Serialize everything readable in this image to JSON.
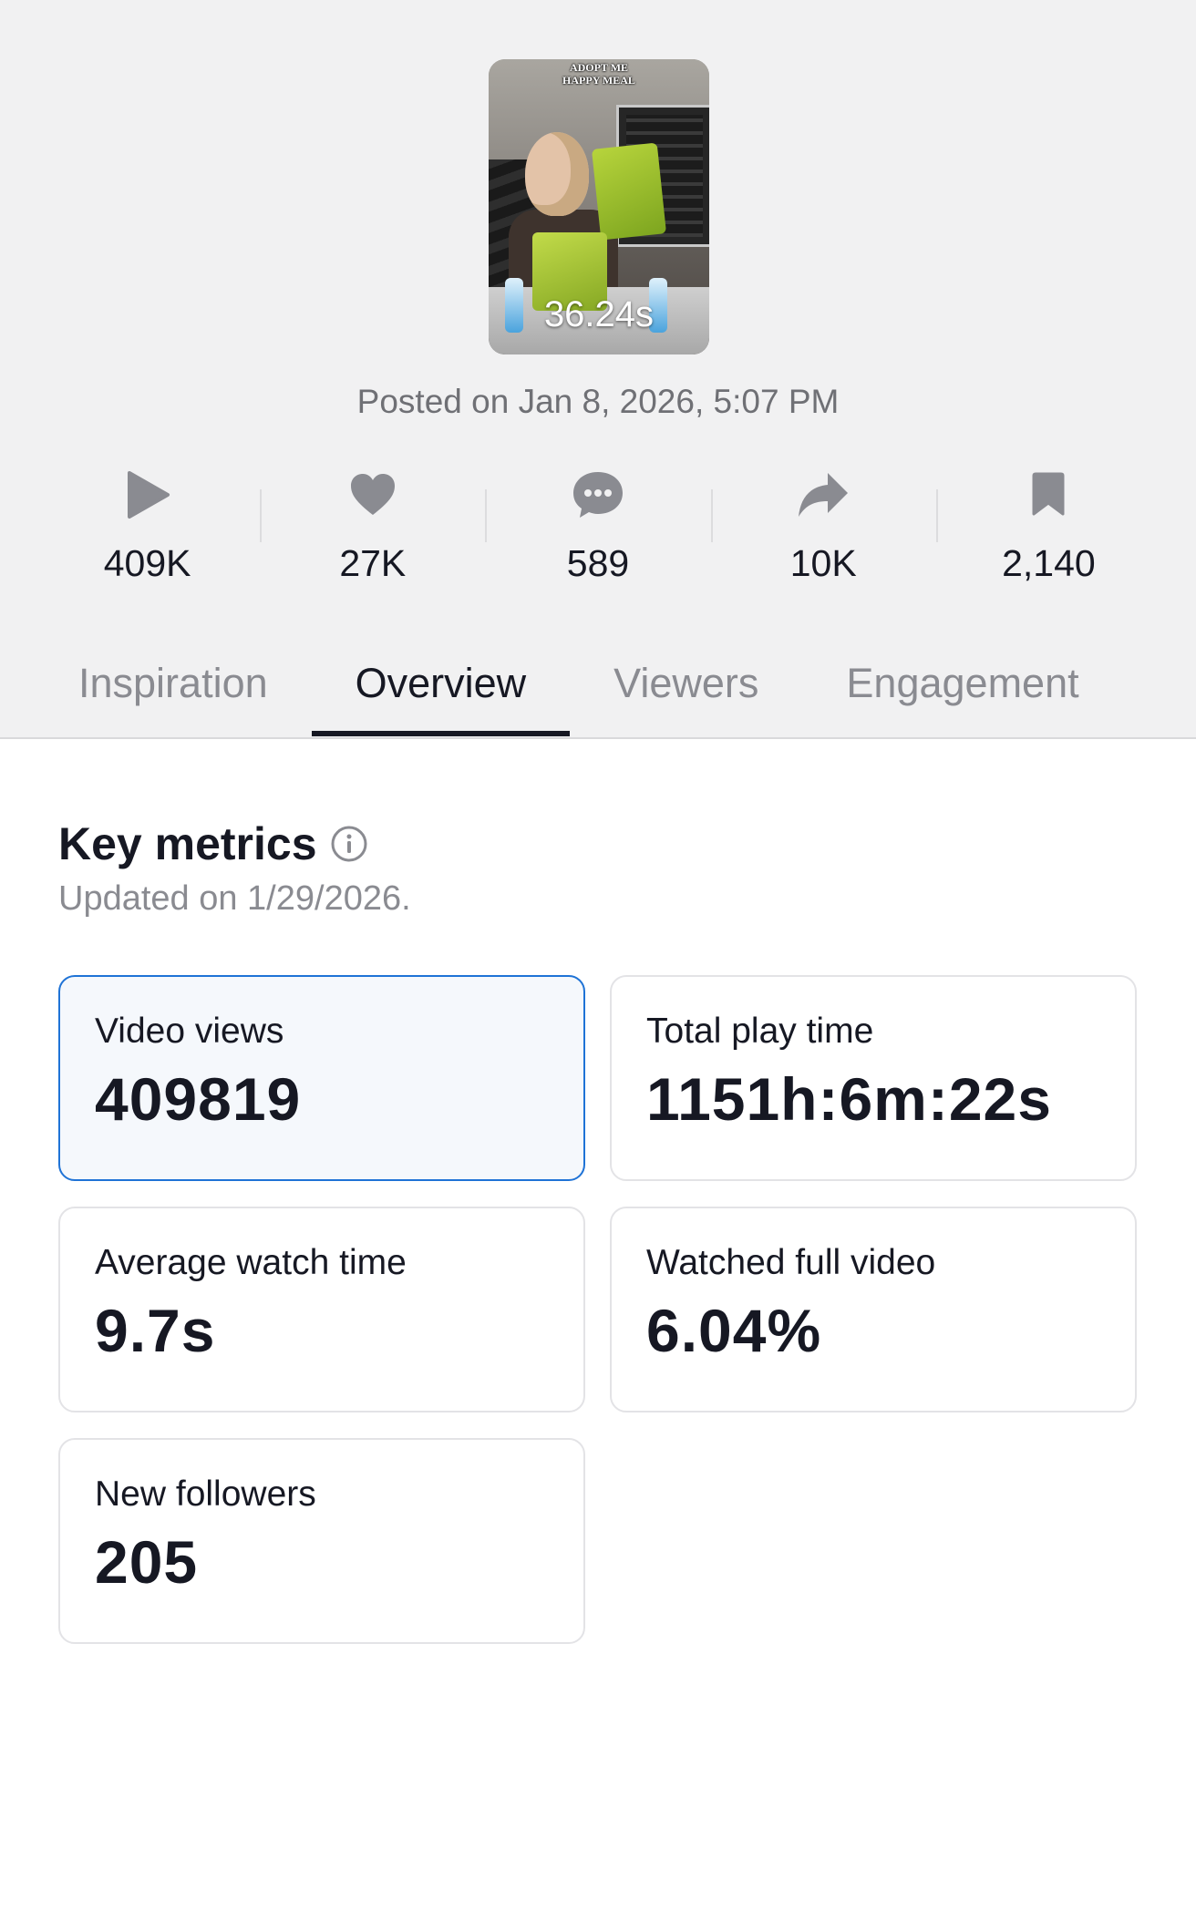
{
  "video": {
    "thumbnail_caption": "ADOPT ME\nHAPPY MEAL",
    "duration": "36.24s",
    "posted": "Posted on Jan 8, 2026, 5:07 PM"
  },
  "stats": [
    {
      "icon": "play-icon",
      "value": "409K"
    },
    {
      "icon": "heart-icon",
      "value": "27K"
    },
    {
      "icon": "comment-icon",
      "value": "589"
    },
    {
      "icon": "share-icon",
      "value": "10K"
    },
    {
      "icon": "bookmark-icon",
      "value": "2,140"
    }
  ],
  "tabs": [
    {
      "label": "Inspiration",
      "active": false
    },
    {
      "label": "Overview",
      "active": true
    },
    {
      "label": "Viewers",
      "active": false
    },
    {
      "label": "Engagement",
      "active": false
    }
  ],
  "key_metrics": {
    "title": "Key metrics",
    "updated": "Updated on 1/29/2026.",
    "metrics": [
      {
        "label": "Video views",
        "value": "409819",
        "selected": true
      },
      {
        "label": "Total play time",
        "value": "1151h:6m:22s",
        "selected": false
      },
      {
        "label": "Average watch time",
        "value": "9.7s",
        "selected": false
      },
      {
        "label": "Watched full video",
        "value": "6.04%",
        "selected": false
      },
      {
        "label": "New followers",
        "value": "205",
        "selected": false
      }
    ]
  },
  "colors": {
    "background_top": "#f1f1f2",
    "text_primary": "#161823",
    "text_secondary": "#8a8b91",
    "icon_gray": "#8a8b91",
    "selected_border": "#1f73d6",
    "selected_fill": "#f5f8fc"
  }
}
